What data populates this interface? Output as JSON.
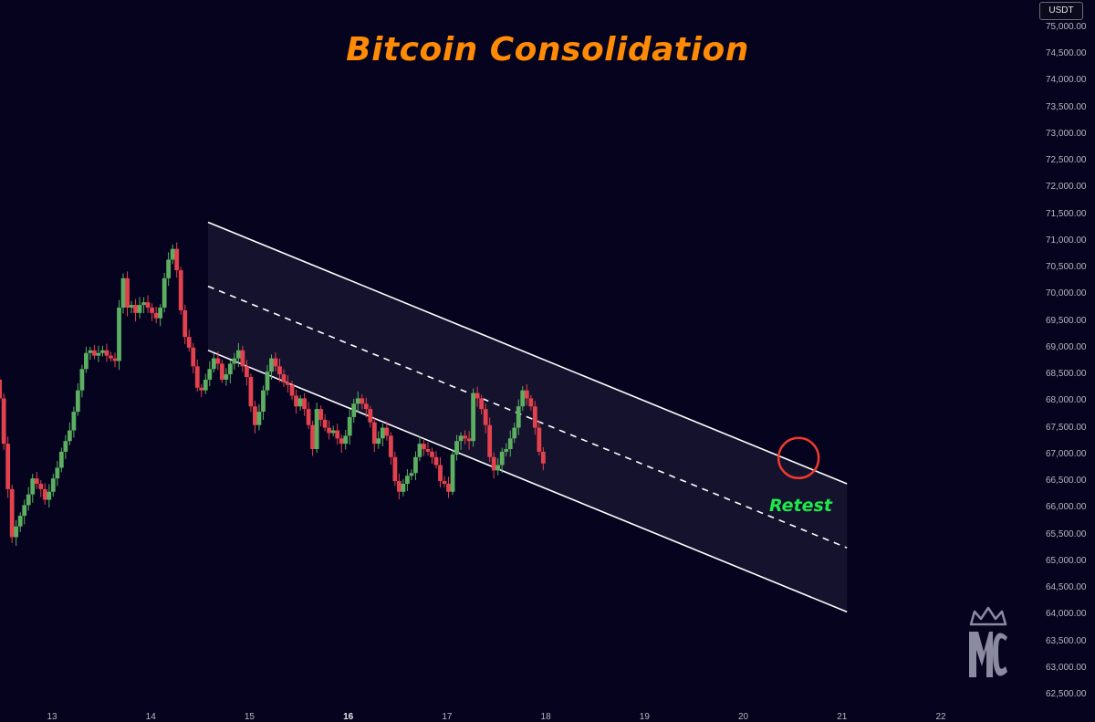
{
  "title": "Bitcoin Consolidation",
  "currency": "USDT",
  "annotation": "Retest",
  "logo_text": "MC",
  "colors": {
    "background": "#05031e",
    "title": "#ff8a05",
    "up_candle": "#5cae61",
    "down_candle": "#e2424e",
    "channel_line": "#ffffff",
    "channel_fill": "#191530",
    "retest_text": "#1ee84a",
    "retest_circle": "#f03a2e"
  },
  "chart_data": {
    "type": "candlestick",
    "title": "Bitcoin Consolidation",
    "y_axis_label": "USDT",
    "y_ticks": [
      "75,000.00",
      "74,500.00",
      "74,000.00",
      "73,500.00",
      "73,000.00",
      "72,500.00",
      "72,000.00",
      "71,500.00",
      "71,000.00",
      "70,500.00",
      "70,000.00",
      "69,500.00",
      "69,000.00",
      "68,500.00",
      "68,000.00",
      "67,500.00",
      "67,000.00",
      "66,500.00",
      "66,000.00",
      "65,500.00",
      "65,000.00",
      "64,500.00",
      "64,000.00",
      "63,500.00",
      "63,000.00",
      "62,500.00"
    ],
    "y_tick_values": [
      75000,
      74500,
      74000,
      73500,
      73000,
      72500,
      72000,
      71500,
      71000,
      70500,
      70000,
      69500,
      69000,
      68500,
      68000,
      67500,
      67000,
      66500,
      66000,
      65500,
      65000,
      64500,
      64000,
      63500,
      63000,
      62500
    ],
    "ylim": [
      62300,
      75100
    ],
    "x_ticks": [
      {
        "label": "13",
        "day": 13,
        "bold": false
      },
      {
        "label": "14",
        "day": 14,
        "bold": false
      },
      {
        "label": "15",
        "day": 15,
        "bold": false
      },
      {
        "label": "16",
        "day": 16,
        "bold": true
      },
      {
        "label": "17",
        "day": 17,
        "bold": false
      },
      {
        "label": "18",
        "day": 18,
        "bold": false
      },
      {
        "label": "19",
        "day": 19,
        "bold": false
      },
      {
        "label": "20",
        "day": 20,
        "bold": false
      },
      {
        "label": "21",
        "day": 21,
        "bold": false
      },
      {
        "label": "22",
        "day": 22,
        "bold": false
      }
    ],
    "xlim": [
      12.5,
      22.6
    ],
    "candle_days_step": 0.0417,
    "channel": {
      "start_day": 14.58,
      "end_day": 21.05,
      "upper": [
        71350,
        66450
      ],
      "middle": [
        70150,
        65250
      ],
      "lower": [
        68950,
        64050
      ]
    },
    "retest_point": {
      "day": 20.56,
      "price": 66830
    },
    "candles_close": [
      68050,
      67200,
      66350,
      65450,
      65650,
      65850,
      66050,
      66250,
      66550,
      66450,
      66350,
      66150,
      66300,
      66550,
      66750,
      67050,
      67250,
      67450,
      67800,
      68200,
      68600,
      68900,
      68950,
      68850,
      68900,
      68950,
      68850,
      68800,
      68750,
      69750,
      70300,
      69750,
      69800,
      69650,
      69800,
      69850,
      69750,
      69650,
      69550,
      69750,
      70300,
      70650,
      70850,
      70450,
      69700,
      69200,
      69000,
      68650,
      68250,
      68200,
      68400,
      68600,
      68800,
      68700,
      68400,
      68500,
      68700,
      68800,
      68950,
      68650,
      68450,
      67900,
      67550,
      67800,
      68200,
      68550,
      68800,
      68650,
      68500,
      68350,
      68300,
      68100,
      67900,
      68050,
      67850,
      67550,
      67100,
      67850,
      67650,
      67500,
      67400,
      67450,
      67300,
      67200,
      67350,
      67700,
      67950,
      68050,
      67950,
      67850,
      67600,
      67200,
      67300,
      67500,
      67350,
      66950,
      66500,
      66300,
      66450,
      66600,
      66650,
      66950,
      67200,
      67100,
      67050,
      66950,
      66800,
      66500,
      66450,
      66300,
      67000,
      67250,
      67350,
      67300,
      67250,
      68150,
      68050,
      67850,
      67550,
      66950,
      66700,
      66800,
      67050,
      67100,
      67300,
      67500,
      67900,
      68200,
      68050,
      67900,
      67500,
      67050,
      66830
    ]
  }
}
